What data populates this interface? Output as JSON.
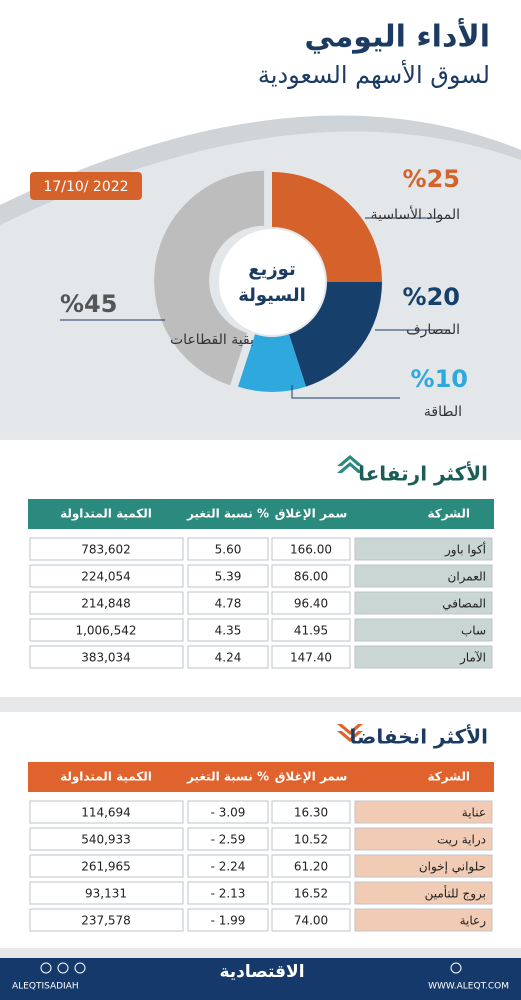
{
  "header": {
    "title": "الأداء اليومي",
    "subtitle": "لسوق الأسهم السعودية",
    "date": "17/10/ 2022"
  },
  "chart_data": {
    "type": "pie",
    "donut": true,
    "center_label": [
      "توزيع",
      "السيولة"
    ],
    "categories": [
      "المواد الأساسية",
      "المصارف",
      "الطاقة",
      "بقية القطاعات"
    ],
    "values": [
      25,
      20,
      10,
      45
    ],
    "value_labels": [
      "%25",
      "%20",
      "%10",
      "%45"
    ],
    "colors": [
      "#d4622a",
      "#173f6b",
      "#2fa8dd",
      "#bdbdbd"
    ]
  },
  "gainers": {
    "title": "الأكثر ارتفاعا",
    "columns": [
      "الشركة",
      "سمر الإغلاق",
      "نسبة التغير %",
      "الكمية المتداولة"
    ],
    "rows": [
      [
        "أكوا باور",
        "166.00",
        "5.60",
        "783,602"
      ],
      [
        "العمران",
        "86.00",
        "5.39",
        "224,054"
      ],
      [
        "المصافي",
        "96.40",
        "4.78",
        "214,848"
      ],
      [
        "ساب",
        "41.95",
        "4.35",
        "1,006,542"
      ],
      [
        "الآمار",
        "147.40",
        "4.24",
        "383,034"
      ]
    ]
  },
  "losers": {
    "title": "الأكثر انخفاضا",
    "columns": [
      "الشركة",
      "سمر الإغلاق",
      "نسبة التغير %",
      "الكمية المتداولة"
    ],
    "rows": [
      [
        "عناية",
        "16.30",
        "- 3.09",
        "114,694"
      ],
      [
        "دراية ريت",
        "10.52",
        "- 2.59",
        "540,933"
      ],
      [
        "حلواني إخوان",
        "61.20",
        "- 2.24",
        "261,965"
      ],
      [
        "بروج للتأمين",
        "16.52",
        "- 2.13",
        "93,131"
      ],
      [
        "رعاية",
        "74.00",
        "- 1.99",
        "237,578"
      ]
    ]
  },
  "footer": {
    "handle": "ALEQTISADIAH",
    "logo": "الاقتصادية",
    "website": "WWW.ALEQT.COM"
  }
}
